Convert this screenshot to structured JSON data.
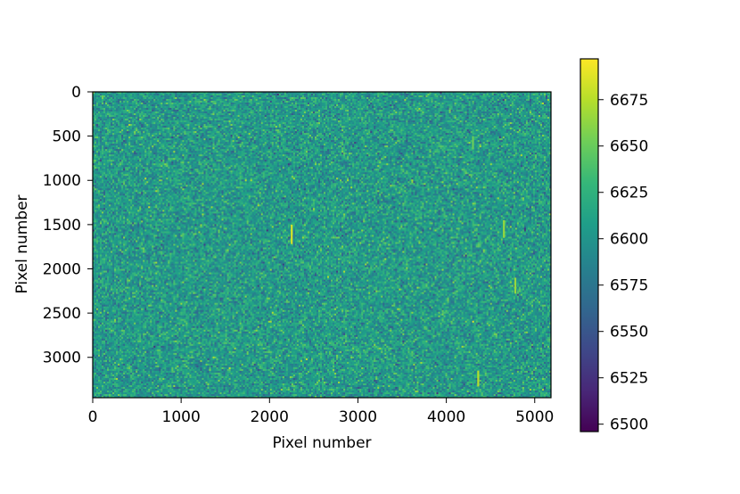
{
  "chart_data": {
    "type": "heatmap",
    "title": "",
    "xlabel": "Pixel number",
    "ylabel": "Pixel number",
    "xlim": [
      0,
      5184
    ],
    "ylim": [
      3456,
      0
    ],
    "x_ticks": [
      0,
      1000,
      2000,
      3000,
      4000,
      5000
    ],
    "x_tick_labels": [
      "0",
      "1000",
      "2000",
      "3000",
      "4000",
      "5000"
    ],
    "y_ticks": [
      0,
      500,
      1000,
      1500,
      2000,
      2500,
      3000
    ],
    "y_tick_labels": [
      "0",
      "500",
      "1000",
      "1500",
      "2000",
      "2500",
      "3000"
    ],
    "image_shape": [
      3456,
      5184
    ],
    "colormap": "viridis",
    "value_mean": 6605,
    "value_std": 20,
    "colorbar": {
      "range": [
        6496,
        6697
      ],
      "ticks": [
        6500,
        6525,
        6550,
        6575,
        6600,
        6625,
        6650,
        6675
      ],
      "tick_labels": [
        "6500",
        "6525",
        "6550",
        "6575",
        "6600",
        "6625",
        "6650",
        "6675"
      ]
    },
    "hot_streaks": [
      {
        "x": 2250,
        "y_from": 1500,
        "y_to": 1720,
        "value": 6685
      },
      {
        "x": 4650,
        "y_from": 1450,
        "y_to": 1650,
        "value": 6665
      },
      {
        "x": 4780,
        "y_from": 2100,
        "y_to": 2280,
        "value": 6665
      },
      {
        "x": 4360,
        "y_from": 3150,
        "y_to": 3330,
        "value": 6675
      },
      {
        "x": 4300,
        "y_from": 500,
        "y_to": 650,
        "value": 6650
      }
    ],
    "grid": false,
    "colors": {
      "viridis_stops": [
        "#440154",
        "#482878",
        "#3e4989",
        "#31688e",
        "#26828e",
        "#1f9e89",
        "#35b779",
        "#6ece58",
        "#b5de2b",
        "#fde725"
      ]
    }
  }
}
